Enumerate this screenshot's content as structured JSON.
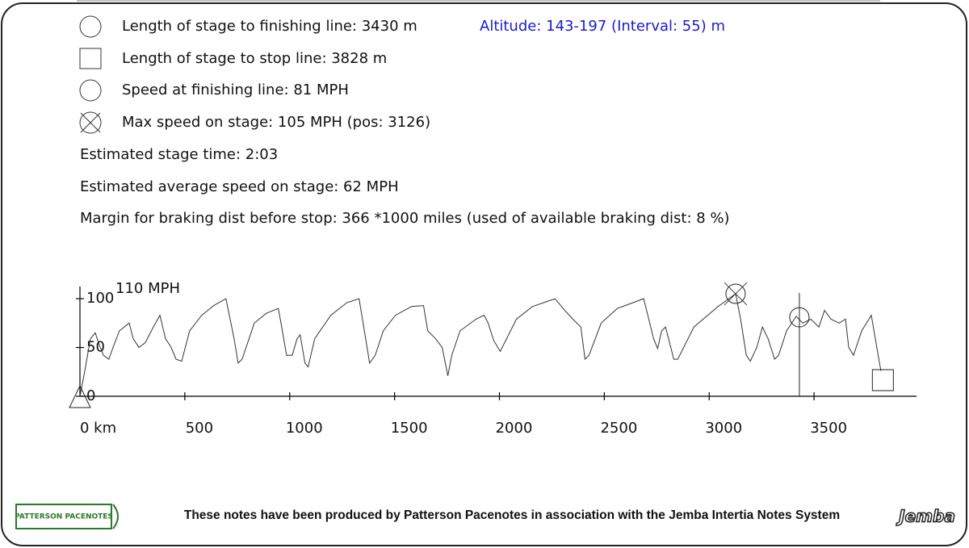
{
  "info": {
    "items": [
      "Length of stage to finishing line: 3430 m",
      "Length of stage to stop line: 3828 m",
      "Speed at finishing line: 81 MPH",
      "Max speed on stage: 105 MPH (pos: 3126)"
    ],
    "altitude": "Altitude: 143-197 (Interval: 55) m",
    "lines": [
      "Estimated stage time: 2:03",
      "Estimated average speed on stage: 62 MPH",
      "Margin for braking dist before stop: 366 *1000 miles (used of available braking dist: 8 %)"
    ]
  },
  "chart_data": {
    "type": "line",
    "ylabel": "110 MPH",
    "x": [
      0,
      23,
      50,
      73,
      88,
      112,
      138,
      158,
      188,
      235,
      254,
      281,
      312,
      350,
      381,
      408,
      435,
      458,
      485,
      523,
      581,
      638,
      696,
      735,
      754,
      773,
      831,
      888,
      946,
      965,
      985,
      1012,
      1035,
      1050,
      1073,
      1088,
      1119,
      1196,
      1273,
      1331,
      1369,
      1381,
      1408,
      1446,
      1504,
      1581,
      1638,
      1658,
      1696,
      1727,
      1754,
      1773,
      1812,
      1888,
      1927,
      1946,
      1973,
      2004,
      2081,
      2158,
      2265,
      2312,
      2350,
      2388,
      2408,
      2427,
      2485,
      2562,
      2638,
      2688,
      2735,
      2754,
      2773,
      2792,
      2831,
      2850,
      2927,
      3042,
      3126,
      3150,
      3177,
      3196,
      3227,
      3254,
      3281,
      3312,
      3331,
      3369,
      3415,
      3446,
      3485,
      3523,
      3550,
      3581,
      3619,
      3650,
      3665,
      3688,
      3727,
      3773,
      3812,
      3819
    ],
    "values": [
      0,
      26,
      59,
      65,
      55,
      42,
      38,
      50,
      67,
      75,
      59,
      50,
      55,
      71,
      83,
      59,
      50,
      38,
      36,
      67,
      83,
      93,
      100,
      59,
      34,
      38,
      75,
      85,
      90,
      67,
      42,
      42,
      59,
      63,
      34,
      30,
      59,
      83,
      96,
      100,
      50,
      34,
      42,
      67,
      83,
      92,
      93,
      67,
      59,
      50,
      21,
      42,
      67,
      79,
      83,
      75,
      57,
      46,
      79,
      92,
      100,
      88,
      79,
      71,
      38,
      42,
      75,
      90,
      96,
      100,
      59,
      49,
      67,
      71,
      38,
      38,
      71,
      92,
      105,
      79,
      42,
      36,
      50,
      71,
      59,
      38,
      42,
      67,
      82,
      75,
      79,
      71,
      88,
      79,
      75,
      79,
      50,
      42,
      67,
      83,
      34,
      26
    ],
    "color": "#333333",
    "xlim": [
      0,
      4000
    ],
    "xticks": [
      {
        "value": 0,
        "label": "0 km"
      },
      500,
      1000,
      1500,
      2000,
      2500,
      3000,
      3500
    ],
    "ylim": [
      0,
      110
    ],
    "yticks": [
      0,
      50,
      100
    ],
    "markers": [
      {
        "shape": "circle",
        "x": 3430,
        "y": 81
      },
      {
        "shape": "cross-circle",
        "x": 3126,
        "y": 105
      },
      {
        "shape": "square",
        "x": 3828,
        "y": 0
      },
      {
        "shape": "triangle",
        "x": 0,
        "y": 0
      }
    ]
  },
  "footer": {
    "logo": "PATTERSON PACENOTES",
    "text": "These notes have been produced by Patterson Pacenotes in association with the Jemba Intertia Notes System",
    "brand": "Jemba"
  }
}
